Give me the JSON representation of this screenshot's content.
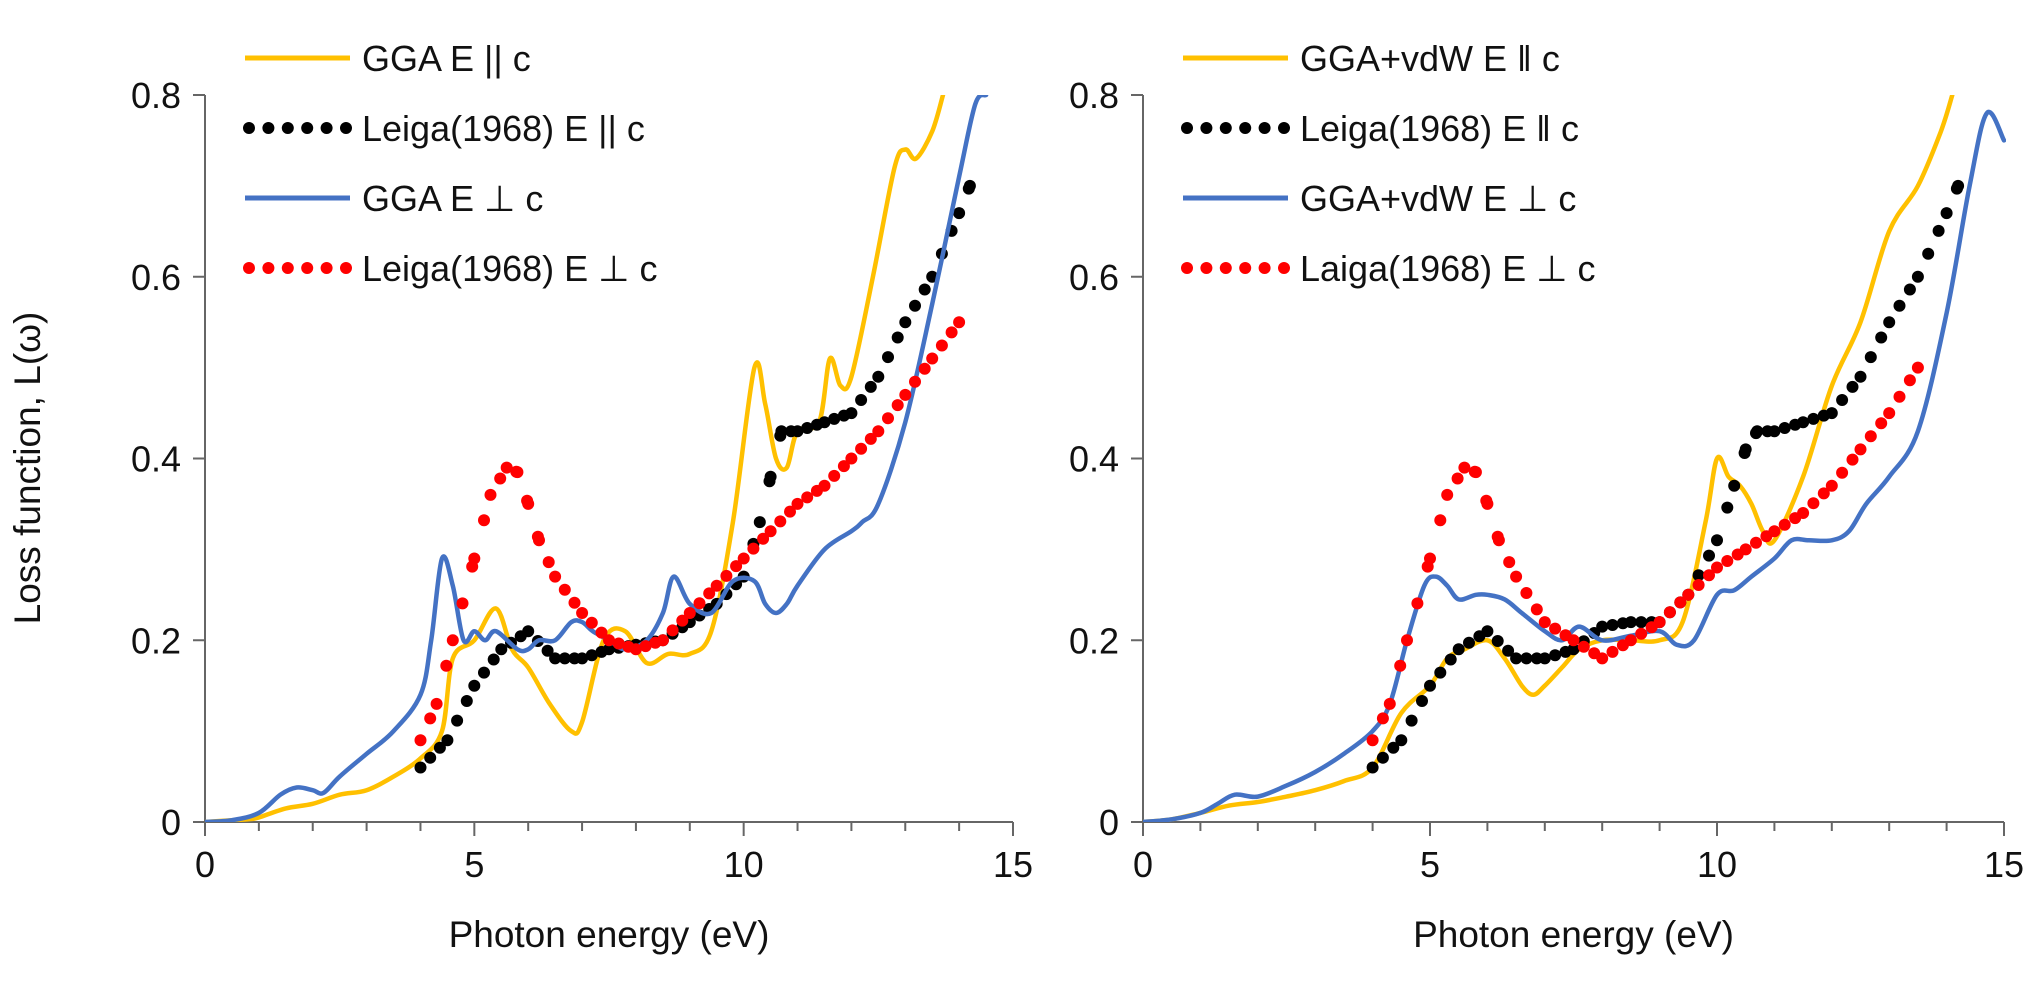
{
  "figure": {
    "ylabel": "Loss function, L(ω)"
  },
  "chart_data": [
    {
      "type": "line",
      "panel": "left",
      "xlabel": "Photon energy (eV)",
      "ylabel": "Loss function, L(ω)",
      "xlim": [
        0,
        15
      ],
      "ylim": [
        0,
        0.8
      ],
      "xticks": [
        0,
        5,
        10,
        15
      ],
      "yticks": [
        0,
        0.2,
        0.4,
        0.6,
        0.8
      ],
      "x_tick_labels": [
        "0",
        "5",
        "10",
        "15"
      ],
      "y_tick_labels": [
        "0",
        "0.2",
        "0.4",
        "0.6",
        "0.8"
      ],
      "legend_position": "top-left",
      "series": [
        {
          "name": "GGA E || c",
          "style": "solid",
          "color": "#FFC000",
          "x": [
            0,
            0.5,
            0.8,
            1.0,
            1.5,
            2.0,
            2.5,
            3.0,
            3.5,
            4.0,
            4.4,
            4.6,
            5.0,
            5.4,
            5.7,
            6.0,
            6.4,
            6.8,
            7.0,
            7.4,
            7.8,
            8.2,
            8.6,
            9.0,
            9.4,
            9.8,
            10.2,
            10.4,
            10.6,
            10.8,
            11.0,
            11.4,
            11.6,
            11.8,
            12.0,
            12.4,
            12.8,
            13.0,
            13.2,
            13.5,
            13.7
          ],
          "y": [
            0,
            0.002,
            0.003,
            0.005,
            0.015,
            0.02,
            0.03,
            0.035,
            0.05,
            0.07,
            0.1,
            0.18,
            0.2,
            0.235,
            0.19,
            0.17,
            0.13,
            0.1,
            0.11,
            0.2,
            0.21,
            0.175,
            0.185,
            0.185,
            0.21,
            0.33,
            0.5,
            0.46,
            0.4,
            0.39,
            0.43,
            0.44,
            0.51,
            0.48,
            0.49,
            0.6,
            0.72,
            0.74,
            0.73,
            0.76,
            0.8
          ]
        },
        {
          "name": "Leiga(1968) E || c",
          "style": "dotted",
          "color": "#000000",
          "x": [
            4.0,
            4.5,
            5.0,
            5.5,
            6.0,
            6.5,
            7.0,
            7.5,
            8.0,
            8.5,
            9.0,
            9.5,
            10.0,
            10.3,
            10.5,
            10.7,
            11.0,
            11.5,
            12.0,
            12.5,
            13.0,
            13.5,
            14.0,
            14.2
          ],
          "y": [
            0.06,
            0.09,
            0.15,
            0.19,
            0.21,
            0.18,
            0.18,
            0.19,
            0.195,
            0.2,
            0.22,
            0.24,
            0.27,
            0.33,
            0.38,
            0.43,
            0.43,
            0.44,
            0.45,
            0.49,
            0.55,
            0.6,
            0.67,
            0.7
          ]
        },
        {
          "name": "GGA E ⊥ c",
          "style": "solid",
          "color": "#4472C4",
          "x": [
            0,
            0.5,
            1.0,
            1.4,
            1.7,
            2.0,
            2.2,
            2.5,
            3.0,
            3.5,
            4.0,
            4.2,
            4.4,
            4.6,
            4.8,
            5.0,
            5.2,
            5.4,
            5.8,
            6.0,
            6.2,
            6.5,
            6.8,
            7.0,
            7.2,
            7.5,
            7.8,
            8.2,
            8.5,
            8.7,
            9.0,
            9.4,
            9.8,
            10.2,
            10.4,
            10.6,
            10.8,
            11.0,
            11.5,
            12.0,
            12.2,
            12.5,
            13.0,
            13.5,
            14.0,
            14.3,
            14.5
          ],
          "y": [
            0,
            0.002,
            0.01,
            0.03,
            0.038,
            0.035,
            0.032,
            0.05,
            0.075,
            0.1,
            0.14,
            0.2,
            0.29,
            0.26,
            0.2,
            0.21,
            0.2,
            0.21,
            0.19,
            0.19,
            0.2,
            0.2,
            0.22,
            0.22,
            0.21,
            0.2,
            0.19,
            0.2,
            0.23,
            0.27,
            0.24,
            0.23,
            0.265,
            0.265,
            0.24,
            0.23,
            0.24,
            0.26,
            0.3,
            0.32,
            0.33,
            0.35,
            0.44,
            0.57,
            0.71,
            0.79,
            0.8
          ]
        },
        {
          "name": "Leiga(1968) E ⊥ c",
          "style": "dotted",
          "color": "#FF0000",
          "x": [
            4.0,
            4.3,
            4.6,
            5.0,
            5.3,
            5.6,
            5.8,
            6.0,
            6.2,
            6.5,
            7.0,
            7.5,
            8.0,
            8.5,
            9.0,
            9.5,
            10.0,
            10.5,
            11.0,
            11.5,
            12.0,
            12.5,
            13.0,
            13.5,
            14.0
          ],
          "y": [
            0.09,
            0.13,
            0.2,
            0.29,
            0.36,
            0.39,
            0.385,
            0.35,
            0.31,
            0.27,
            0.23,
            0.2,
            0.19,
            0.2,
            0.23,
            0.26,
            0.29,
            0.32,
            0.35,
            0.37,
            0.4,
            0.43,
            0.47,
            0.51,
            0.55
          ]
        }
      ]
    },
    {
      "type": "line",
      "panel": "right",
      "xlabel": "Photon energy (eV)",
      "ylabel": "",
      "xlim": [
        0,
        15
      ],
      "ylim": [
        0,
        0.8
      ],
      "xticks": [
        0,
        5,
        10,
        15
      ],
      "yticks": [
        0,
        0.2,
        0.4,
        0.6,
        0.8
      ],
      "x_tick_labels": [
        "0",
        "5",
        "10",
        "15"
      ],
      "y_tick_labels": [
        "0",
        "0.2",
        "0.4",
        "0.6",
        "0.8"
      ],
      "legend_position": "top-left",
      "series": [
        {
          "name": "GGA+vdW E ‖ c",
          "style": "solid",
          "color": "#FFC000",
          "x": [
            0,
            0.5,
            1.0,
            1.5,
            2.0,
            2.5,
            3.0,
            3.5,
            4.0,
            4.5,
            5.0,
            5.3,
            5.6,
            6.0,
            6.3,
            6.6,
            6.8,
            7.0,
            7.3,
            7.6,
            8.0,
            8.5,
            9.0,
            9.4,
            9.8,
            10.0,
            10.2,
            10.4,
            10.6,
            10.8,
            11.0,
            11.5,
            12.0,
            12.5,
            13.0,
            13.5,
            13.9,
            14.1
          ],
          "y": [
            0,
            0.003,
            0.01,
            0.018,
            0.022,
            0.028,
            0.035,
            0.045,
            0.06,
            0.12,
            0.15,
            0.18,
            0.19,
            0.2,
            0.18,
            0.15,
            0.14,
            0.15,
            0.17,
            0.19,
            0.2,
            0.2,
            0.2,
            0.22,
            0.33,
            0.4,
            0.38,
            0.37,
            0.35,
            0.32,
            0.31,
            0.38,
            0.48,
            0.55,
            0.65,
            0.7,
            0.76,
            0.8
          ]
        },
        {
          "name": "Leiga(1968) E ‖ c",
          "style": "dotted",
          "color": "#000000",
          "x": [
            4.0,
            4.5,
            5.0,
            5.5,
            6.0,
            6.5,
            7.0,
            7.5,
            8.0,
            8.5,
            9.0,
            9.5,
            10.0,
            10.3,
            10.5,
            10.7,
            11.0,
            11.5,
            12.0,
            12.5,
            13.0,
            13.5,
            14.0,
            14.2
          ],
          "y": [
            0.06,
            0.09,
            0.15,
            0.19,
            0.21,
            0.18,
            0.18,
            0.19,
            0.215,
            0.22,
            0.22,
            0.25,
            0.31,
            0.37,
            0.41,
            0.43,
            0.43,
            0.44,
            0.45,
            0.49,
            0.55,
            0.6,
            0.67,
            0.7
          ]
        },
        {
          "name": " GGA+vdW E ⊥ c",
          "style": "solid",
          "color": "#4472C4",
          "x": [
            0,
            0.5,
            1.0,
            1.3,
            1.6,
            2.0,
            2.5,
            3.0,
            3.5,
            4.0,
            4.3,
            4.6,
            4.9,
            5.1,
            5.3,
            5.5,
            5.8,
            6.0,
            6.3,
            6.6,
            7.0,
            7.3,
            7.6,
            8.0,
            8.5,
            9.0,
            9.3,
            9.6,
            10.0,
            10.3,
            10.6,
            11.0,
            11.3,
            11.6,
            12.0,
            12.3,
            12.6,
            13.0,
            13.5,
            14.0,
            14.4,
            14.7,
            15.0
          ],
          "y": [
            0,
            0.003,
            0.01,
            0.02,
            0.03,
            0.028,
            0.04,
            0.055,
            0.075,
            0.1,
            0.13,
            0.2,
            0.26,
            0.27,
            0.26,
            0.245,
            0.25,
            0.25,
            0.245,
            0.23,
            0.21,
            0.2,
            0.215,
            0.2,
            0.205,
            0.21,
            0.195,
            0.2,
            0.25,
            0.255,
            0.27,
            0.29,
            0.31,
            0.31,
            0.31,
            0.32,
            0.35,
            0.38,
            0.43,
            0.56,
            0.7,
            0.78,
            0.75
          ]
        },
        {
          "name": "Laiga(1968) E ⊥ c",
          "style": "dotted",
          "color": "#FF0000",
          "x": [
            4.0,
            4.3,
            4.6,
            5.0,
            5.3,
            5.6,
            5.8,
            6.0,
            6.2,
            6.5,
            7.0,
            7.5,
            8.0,
            8.5,
            9.0,
            9.5,
            10.0,
            10.5,
            11.0,
            11.5,
            12.0,
            12.5,
            13.0,
            13.5
          ],
          "y": [
            0.09,
            0.13,
            0.2,
            0.29,
            0.36,
            0.39,
            0.385,
            0.35,
            0.31,
            0.27,
            0.22,
            0.2,
            0.18,
            0.2,
            0.22,
            0.25,
            0.28,
            0.3,
            0.32,
            0.34,
            0.37,
            0.41,
            0.45,
            0.5
          ]
        }
      ]
    }
  ]
}
